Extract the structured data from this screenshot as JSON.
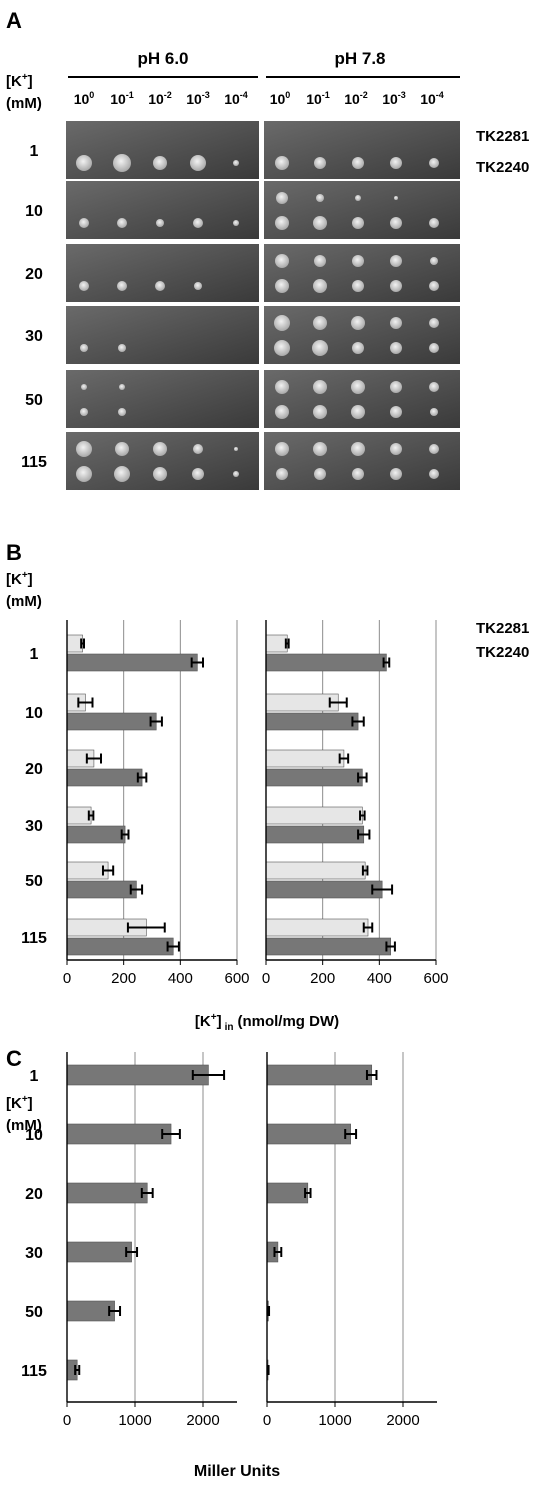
{
  "figure": {
    "panel_labels": [
      "A",
      "B",
      "C"
    ],
    "k_label_main": "[K",
    "k_label_sup": "+",
    "k_label_close": "]",
    "k_unit": "(mM)",
    "conc_labels": [
      "1",
      "10",
      "20",
      "30",
      "50",
      "115"
    ],
    "strains": [
      "TK2281",
      "TK2240"
    ]
  },
  "panel_a": {
    "ph_labels": [
      "pH 6.0",
      "pH 7.8"
    ],
    "dilution_base": "10",
    "dilution_exponents": [
      "0",
      "-1",
      "-2",
      "-3",
      "-4"
    ],
    "colors": {
      "plate_dark": "#3a3a3a",
      "plate_light": "#6a6a6a",
      "colony": "#d8d8d8"
    }
  },
  "panel_b_xlabel": {
    "prefix": "[K",
    "sup": "+",
    "close": "]",
    "sub": "in",
    "unit": "(nmol/mg DW)"
  },
  "panel_c_xlabel": "Miller Units",
  "chart_data": [
    {
      "id": "B-left",
      "type": "bar",
      "orientation": "horizontal",
      "categories": [
        "1",
        "10",
        "20",
        "30",
        "50",
        "115"
      ],
      "series": [
        {
          "name": "TK2281",
          "values": [
            55,
            65,
            95,
            85,
            145,
            280
          ],
          "errors": [
            5,
            25,
            25,
            8,
            18,
            65
          ],
          "color": "#e6e6e6"
        },
        {
          "name": "TK2240",
          "values": [
            460,
            315,
            265,
            205,
            245,
            375
          ],
          "errors": [
            20,
            20,
            15,
            12,
            20,
            20
          ],
          "color": "#777777"
        }
      ],
      "xlim": [
        0,
        600
      ],
      "xticks": [
        "0",
        "200",
        "400",
        "600"
      ]
    },
    {
      "id": "B-right",
      "type": "bar",
      "orientation": "horizontal",
      "categories": [
        "1",
        "10",
        "20",
        "30",
        "50",
        "115"
      ],
      "series": [
        {
          "name": "TK2281",
          "values": [
            75,
            255,
            275,
            340,
            350,
            360
          ],
          "errors": [
            5,
            30,
            15,
            8,
            8,
            15
          ],
          "color": "#e6e6e6"
        },
        {
          "name": "TK2240",
          "values": [
            425,
            325,
            340,
            345,
            410,
            440
          ],
          "errors": [
            10,
            20,
            15,
            20,
            35,
            15
          ],
          "color": "#777777"
        }
      ],
      "xlim": [
        0,
        600
      ],
      "xticks": [
        "0",
        "200",
        "400",
        "600"
      ]
    },
    {
      "id": "C-left",
      "type": "bar",
      "orientation": "horizontal",
      "categories": [
        "1",
        "10",
        "20",
        "30",
        "50",
        "115"
      ],
      "series": [
        {
          "name": "TK2240",
          "values": [
            2080,
            1530,
            1180,
            950,
            700,
            150
          ],
          "errors": [
            230,
            130,
            80,
            80,
            80,
            30
          ],
          "color": "#777777"
        }
      ],
      "xlim": [
        0,
        2500
      ],
      "xticks": [
        "0",
        "1000",
        "2000"
      ]
    },
    {
      "id": "C-right",
      "type": "bar",
      "orientation": "horizontal",
      "categories": [
        "1",
        "10",
        "20",
        "30",
        "50",
        "115"
      ],
      "series": [
        {
          "name": "TK2240",
          "values": [
            1540,
            1230,
            600,
            160,
            20,
            15
          ],
          "errors": [
            70,
            80,
            40,
            50,
            10,
            8
          ],
          "color": "#777777"
        }
      ],
      "xlim": [
        0,
        2500
      ],
      "xticks": [
        "0",
        "1000",
        "2000"
      ]
    }
  ]
}
